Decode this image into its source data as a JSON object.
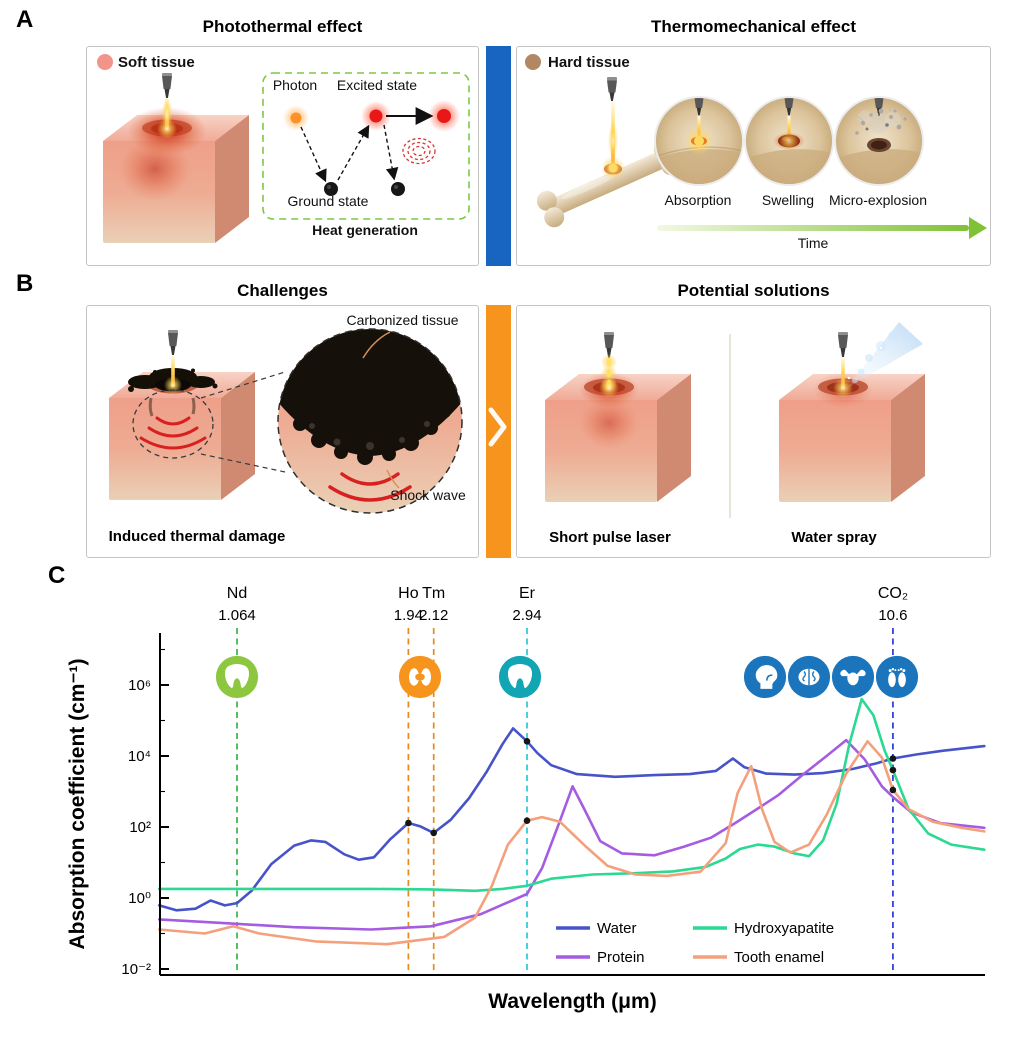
{
  "panel_a": {
    "label": "A",
    "left_title": "Photothermal effect",
    "right_title": "Thermomechanical effect",
    "soft_tissue_label": "Soft tissue",
    "hard_tissue_label": "Hard tissue",
    "photon_label": "Photon",
    "excited_state_label": "Excited state",
    "ground_state_label": "Ground state",
    "heat_generation_label": "Heat generation",
    "stages": [
      "Absorption",
      "Swelling",
      "Micro-explosion"
    ],
    "time_label": "Time"
  },
  "panel_b": {
    "label": "B",
    "left_title": "Challenges",
    "right_title": "Potential solutions",
    "carbonized_tissue_label": "Carbonized tissue",
    "shock_wave_label": "Shock wave",
    "left_caption": "Induced thermal damage",
    "solution_1_caption": "Short pulse laser",
    "solution_2_caption": "Water spray"
  },
  "panel_c": {
    "label": "C"
  },
  "colors": {
    "divider_blue": "#1765c1",
    "divider_orange": "#f7941e",
    "heat_box_green": "#7ac943",
    "time_arrow_green": "#7fc236"
  },
  "chart_data": {
    "type": "line",
    "xlabel": "Wavelength (μm)",
    "ylabel": "Absorption coefficient (cm⁻¹)",
    "x_scale": "log",
    "y_scale": "log",
    "xlim": [
      0.81,
      14.6
    ],
    "y_tick_exponents": [
      -2,
      0,
      2,
      4,
      6
    ],
    "y_tick_labels": [
      "10⁻²",
      "10⁰",
      "10²",
      "10⁴",
      "10⁶"
    ],
    "laser_lines": [
      {
        "name": "Nd",
        "wavelength": 1.064,
        "wavelength_label": "1.064",
        "color": "#38b449",
        "application_icon": "tooth",
        "icon_color": "#8dc63f"
      },
      {
        "name": "Ho",
        "wavelength": 1.94,
        "wavelength_label": "1.94",
        "color": "#e8891d",
        "application_icon": "kidneys",
        "icon_color": "#f7941d"
      },
      {
        "name": "Tm",
        "wavelength": 2.12,
        "wavelength_label": "2.12",
        "color": "#e8891d",
        "application_icon": "kidneys",
        "icon_color": "#f7941d"
      },
      {
        "name": "Er",
        "wavelength": 2.94,
        "wavelength_label": "2.94",
        "color": "#27c8d8",
        "application_icon": "tooth",
        "icon_color": "#12a5b4"
      },
      {
        "name": "CO₂",
        "wavelength": 10.6,
        "wavelength_label": "10.6",
        "color": "#2438d8",
        "application_icons": [
          "head",
          "brain",
          "uterus",
          "feet"
        ],
        "icon_color": "#1b75bc"
      }
    ],
    "series": [
      {
        "name": "Water",
        "color": "#4753c8",
        "points": [
          [
            0.81,
            0.62
          ],
          [
            0.86,
            0.45
          ],
          [
            0.92,
            0.5
          ],
          [
            0.97,
            0.85
          ],
          [
            1.02,
            0.62
          ],
          [
            1.064,
            0.72
          ],
          [
            1.12,
            1.6
          ],
          [
            1.2,
            9
          ],
          [
            1.3,
            30
          ],
          [
            1.38,
            42
          ],
          [
            1.45,
            38
          ],
          [
            1.55,
            17
          ],
          [
            1.63,
            12
          ],
          [
            1.72,
            14
          ],
          [
            1.82,
            45
          ],
          [
            1.94,
            130
          ],
          [
            2.02,
            105
          ],
          [
            2.12,
            68
          ],
          [
            2.25,
            160
          ],
          [
            2.4,
            650
          ],
          [
            2.55,
            3500
          ],
          [
            2.7,
            22000
          ],
          [
            2.8,
            60000
          ],
          [
            2.94,
            26000
          ],
          [
            3.05,
            12000
          ],
          [
            3.2,
            5500
          ],
          [
            3.5,
            3100
          ],
          [
            4,
            2600
          ],
          [
            4.6,
            2900
          ],
          [
            5.2,
            3100
          ],
          [
            5.7,
            3800
          ],
          [
            6.05,
            8500
          ],
          [
            6.3,
            4800
          ],
          [
            6.8,
            3200
          ],
          [
            7.5,
            3000
          ],
          [
            8.3,
            3300
          ],
          [
            9.2,
            4300
          ],
          [
            10,
            6200
          ],
          [
            10.6,
            8500
          ],
          [
            11.5,
            11000
          ],
          [
            12.6,
            14000
          ],
          [
            14.6,
            19000
          ]
        ]
      },
      {
        "name": "Protein",
        "color": "#a55ce0",
        "points": [
          [
            0.81,
            0.25
          ],
          [
            1,
            0.2
          ],
          [
            1.3,
            0.15
          ],
          [
            1.7,
            0.13
          ],
          [
            2.1,
            0.16
          ],
          [
            2.5,
            0.35
          ],
          [
            2.94,
            1.3
          ],
          [
            3.1,
            7
          ],
          [
            3.3,
            150
          ],
          [
            3.45,
            1400
          ],
          [
            3.6,
            300
          ],
          [
            3.8,
            40
          ],
          [
            4.1,
            18
          ],
          [
            4.6,
            16
          ],
          [
            5.1,
            28
          ],
          [
            5.6,
            50
          ],
          [
            6.1,
            130
          ],
          [
            6.6,
            330
          ],
          [
            7.1,
            800
          ],
          [
            7.7,
            2800
          ],
          [
            8.4,
            10000
          ],
          [
            9,
            28000
          ],
          [
            9.6,
            8000
          ],
          [
            10.2,
            1400
          ],
          [
            10.6,
            700
          ],
          [
            11.3,
            260
          ],
          [
            12.5,
            130
          ],
          [
            14.6,
            95
          ]
        ]
      },
      {
        "name": "Hydroxyapatite",
        "color": "#2bd992",
        "points": [
          [
            0.81,
            1.8
          ],
          [
            1.2,
            1.8
          ],
          [
            1.7,
            1.8
          ],
          [
            2.1,
            1.75
          ],
          [
            2.45,
            1.6
          ],
          [
            2.7,
            1.8
          ],
          [
            2.94,
            2.2
          ],
          [
            3.2,
            3.5
          ],
          [
            3.7,
            4.6
          ],
          [
            4.3,
            5
          ],
          [
            4.9,
            5.6
          ],
          [
            5.5,
            7.5
          ],
          [
            5.9,
            13
          ],
          [
            6.2,
            24
          ],
          [
            6.6,
            32
          ],
          [
            7,
            28
          ],
          [
            7.5,
            18
          ],
          [
            7.9,
            15
          ],
          [
            8.3,
            42
          ],
          [
            8.7,
            450
          ],
          [
            9.1,
            22000
          ],
          [
            9.5,
            400000
          ],
          [
            9.9,
            140000
          ],
          [
            10.3,
            14000
          ],
          [
            10.6,
            4000
          ],
          [
            11.2,
            320
          ],
          [
            12,
            65
          ],
          [
            13,
            32
          ],
          [
            14.6,
            23
          ]
        ]
      },
      {
        "name": "Tooth enamel",
        "color": "#f4a episodes07c",
        "points": []
      }
    ],
    "markers": [
      [
        1.94,
        130
      ],
      [
        2.12,
        68
      ],
      [
        2.94,
        26000
      ],
      [
        2.94,
        150
      ],
      [
        10.6,
        8500
      ],
      [
        10.6,
        4000
      ],
      [
        10.6,
        1100
      ]
    ],
    "legend": {
      "columns": 2,
      "position": "inside-bottom-center",
      "entries": [
        {
          "name": "Water",
          "color": "#4753c8"
        },
        {
          "name": "Protein",
          "color": "#a55ce0"
        },
        {
          "name": "Hydroxyapatite",
          "color": "#2bd992"
        },
        {
          "name": "Tooth enamel",
          "color": "#f4a07c"
        }
      ]
    }
  }
}
